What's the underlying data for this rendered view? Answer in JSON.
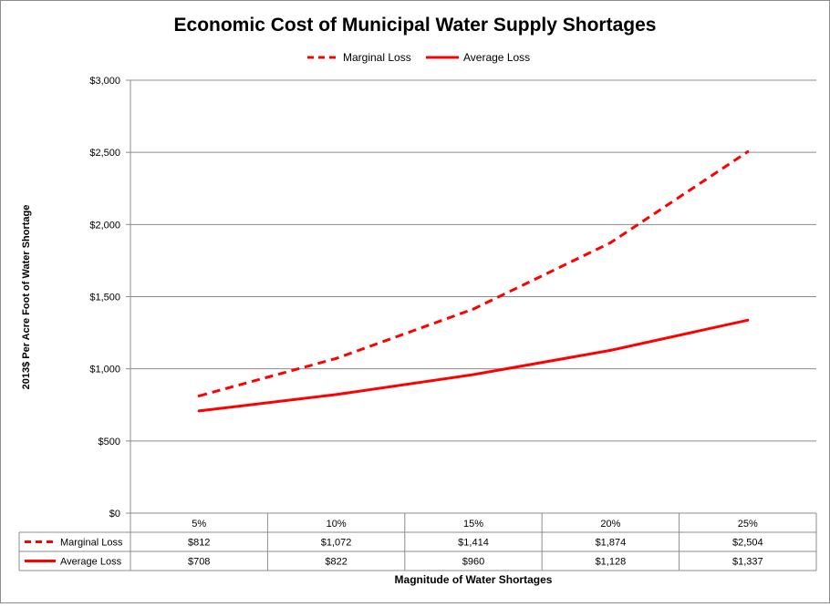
{
  "chart_data": {
    "type": "line",
    "title": "Economic Cost of Municipal Water Supply Shortages",
    "xlabel": "Magnitude of Water Shortages",
    "ylabel": "2013$ Per Acre Foot of Water Shortage",
    "categories": [
      "5%",
      "10%",
      "15%",
      "20%",
      "25%"
    ],
    "ylim": [
      0,
      3000
    ],
    "yticks": [
      0,
      500,
      1000,
      1500,
      2000,
      2500,
      3000
    ],
    "ytick_labels": [
      "$0",
      "$500",
      "$1,000",
      "$1,500",
      "$2,000",
      "$2,500",
      "$3,000"
    ],
    "grid": true,
    "legend_position": "top",
    "series": [
      {
        "name": "Marginal Loss",
        "style": "dashed",
        "color": "#ff0000",
        "values": [
          812,
          1072,
          1414,
          1874,
          2504
        ],
        "labels": [
          "$812",
          "$1,072",
          "$1,414",
          "$1,874",
          "$2,504"
        ]
      },
      {
        "name": "Average Loss",
        "style": "solid",
        "color": "#ff0000",
        "values": [
          708,
          822,
          960,
          1128,
          1337
        ],
        "labels": [
          "$708",
          "$822",
          "$960",
          "$1,128",
          "$1,337"
        ]
      }
    ],
    "data_table": true
  }
}
